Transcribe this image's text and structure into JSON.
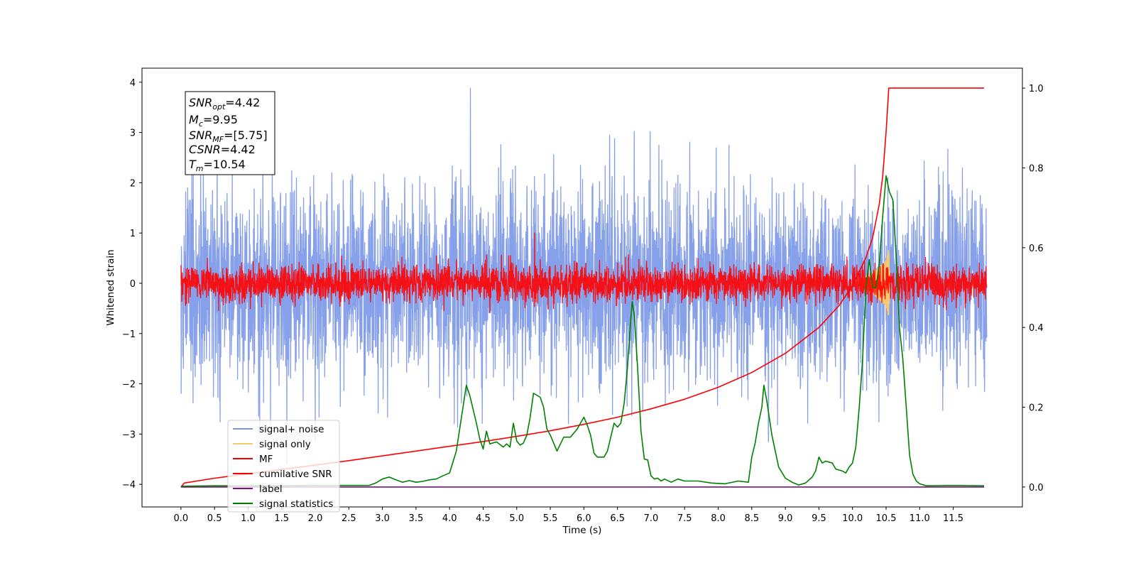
{
  "chart_data": {
    "type": "line",
    "xlabel": "Time (s)",
    "ylabel": "Whitened strain",
    "xlim": [
      -0.58,
      12.53
    ],
    "ylim": [
      -4.45,
      4.28
    ],
    "y2lim": [
      -0.05,
      1.05
    ],
    "x_ticks": [
      0.0,
      0.5,
      1.0,
      1.5,
      2.0,
      2.5,
      3.0,
      3.5,
      4.0,
      4.5,
      5.0,
      5.5,
      6.0,
      6.5,
      7.0,
      7.5,
      8.0,
      8.5,
      9.0,
      9.5,
      10.0,
      10.5,
      11.0,
      11.5
    ],
    "x_tick_labels": [
      "0.0",
      "0.5",
      "1.0",
      "1.5",
      "2.0",
      "2.5",
      "3.0",
      "3.5",
      "4.0",
      "4.5",
      "5.0",
      "5.5",
      "6.0",
      "6.5",
      "7.0",
      "7.5",
      "8.0",
      "8.5",
      "9.0",
      "9.5",
      "10.0",
      "10.5",
      "11.0",
      "11.5"
    ],
    "y_ticks": [
      -4,
      -3,
      -2,
      -1,
      0,
      1,
      2,
      3,
      4
    ],
    "y_tick_labels": [
      "−4",
      "−3",
      "−2",
      "−1",
      "0",
      "1",
      "2",
      "3",
      "4"
    ],
    "y2_ticks": [
      0.0,
      0.2,
      0.4,
      0.6,
      0.8,
      1.0
    ],
    "y2_tick_labels": [
      "0.0",
      "0.2",
      "0.4",
      "0.6",
      "0.8",
      "1.0"
    ],
    "grid": false,
    "legend_position": "lower-left",
    "annotation": {
      "lines": [
        {
          "var": "SNR",
          "sub": "opt",
          "value": "=4.42"
        },
        {
          "var": "M",
          "sub": "c",
          "value": "=9.95"
        },
        {
          "var": "SNR",
          "sub": "MF",
          "value": "=[5.75]"
        },
        {
          "var": "CSNR",
          "sub": "",
          "value": "=4.42"
        },
        {
          "var": "T",
          "sub": "m",
          "value": "=10.54"
        }
      ]
    },
    "series": [
      {
        "name": "signal+ noise",
        "color": "#7a96e8",
        "axis": "left",
        "kind": "noise",
        "x_range": [
          0.0,
          12.0
        ],
        "std": 1.0,
        "peak_min": -3.6,
        "peak_max": 3.88,
        "envelope": [
          [
            0.0,
            3.6
          ],
          [
            12.0,
            3.6
          ]
        ]
      },
      {
        "name": "signal only",
        "color": "#f5c970",
        "axis": "left",
        "kind": "chirp",
        "x_range": [
          10.0,
          10.56
        ],
        "envelope": [
          [
            10.0,
            0.05
          ],
          [
            10.3,
            0.2
          ],
          [
            10.5,
            0.45
          ],
          [
            10.54,
            0.7
          ],
          [
            10.56,
            0.0
          ]
        ]
      },
      {
        "name": "MF",
        "color": "#ff0000",
        "axis": "left",
        "kind": "noise",
        "x_range": [
          0.0,
          12.0
        ],
        "std": 0.18,
        "peak_min": -0.27,
        "peak_max": 1.0,
        "envelope": [
          [
            0.0,
            0.6
          ],
          [
            12.0,
            0.6
          ]
        ]
      },
      {
        "name": "cumilative SNR",
        "color": "#ff0000",
        "axis": "right",
        "kind": "line",
        "points": [
          [
            0.0,
            0.0
          ],
          [
            0.05,
            0.01
          ],
          [
            0.5,
            0.022
          ],
          [
            1.0,
            0.033
          ],
          [
            1.5,
            0.044
          ],
          [
            2.0,
            0.055
          ],
          [
            2.5,
            0.066
          ],
          [
            3.0,
            0.078
          ],
          [
            3.5,
            0.09
          ],
          [
            4.0,
            0.102
          ],
          [
            4.5,
            0.114
          ],
          [
            5.0,
            0.127
          ],
          [
            5.5,
            0.141
          ],
          [
            6.0,
            0.157
          ],
          [
            6.5,
            0.175
          ],
          [
            7.0,
            0.196
          ],
          [
            7.5,
            0.22
          ],
          [
            8.0,
            0.25
          ],
          [
            8.5,
            0.287
          ],
          [
            9.0,
            0.335
          ],
          [
            9.5,
            0.4
          ],
          [
            9.8,
            0.455
          ],
          [
            10.0,
            0.505
          ],
          [
            10.2,
            0.575
          ],
          [
            10.3,
            0.625
          ],
          [
            10.4,
            0.71
          ],
          [
            10.45,
            0.78
          ],
          [
            10.5,
            0.89
          ],
          [
            10.54,
            1.0
          ],
          [
            11.96,
            1.0
          ]
        ]
      },
      {
        "name": "label",
        "color": "#7b0f80",
        "axis": "right",
        "kind": "line",
        "points": [
          [
            0.0,
            0.0
          ],
          [
            11.96,
            0.0
          ]
        ]
      },
      {
        "name": "signal statistics",
        "color": "#008000",
        "axis": "right",
        "kind": "line",
        "points": [
          [
            0.0,
            0.002
          ],
          [
            0.5,
            0.003
          ],
          [
            1.0,
            0.003
          ],
          [
            1.5,
            0.003
          ],
          [
            2.0,
            0.004
          ],
          [
            2.5,
            0.004
          ],
          [
            2.8,
            0.004
          ],
          [
            2.9,
            0.01
          ],
          [
            3.0,
            0.02
          ],
          [
            3.1,
            0.025
          ],
          [
            3.2,
            0.018
          ],
          [
            3.3,
            0.012
          ],
          [
            3.4,
            0.016
          ],
          [
            3.5,
            0.012
          ],
          [
            3.6,
            0.014
          ],
          [
            3.7,
            0.018
          ],
          [
            3.8,
            0.02
          ],
          [
            3.9,
            0.028
          ],
          [
            4.0,
            0.035
          ],
          [
            4.1,
            0.09
          ],
          [
            4.2,
            0.2
          ],
          [
            4.25,
            0.255
          ],
          [
            4.3,
            0.23
          ],
          [
            4.4,
            0.16
          ],
          [
            4.45,
            0.12
          ],
          [
            4.5,
            0.095
          ],
          [
            4.55,
            0.14
          ],
          [
            4.6,
            0.108
          ],
          [
            4.7,
            0.113
          ],
          [
            4.8,
            0.1
          ],
          [
            4.85,
            0.108
          ],
          [
            4.9,
            0.1
          ],
          [
            4.95,
            0.16
          ],
          [
            5.0,
            0.115
          ],
          [
            5.05,
            0.105
          ],
          [
            5.1,
            0.11
          ],
          [
            5.15,
            0.13
          ],
          [
            5.2,
            0.175
          ],
          [
            5.25,
            0.235
          ],
          [
            5.3,
            0.23
          ],
          [
            5.35,
            0.225
          ],
          [
            5.4,
            0.2
          ],
          [
            5.45,
            0.145
          ],
          [
            5.5,
            0.13
          ],
          [
            5.55,
            0.11
          ],
          [
            5.6,
            0.09
          ],
          [
            5.7,
            0.125
          ],
          [
            5.8,
            0.125
          ],
          [
            5.9,
            0.145
          ],
          [
            5.95,
            0.16
          ],
          [
            6.0,
            0.175
          ],
          [
            6.05,
            0.155
          ],
          [
            6.1,
            0.13
          ],
          [
            6.15,
            0.085
          ],
          [
            6.2,
            0.075
          ],
          [
            6.3,
            0.075
          ],
          [
            6.35,
            0.09
          ],
          [
            6.4,
            0.125
          ],
          [
            6.45,
            0.16
          ],
          [
            6.5,
            0.15
          ],
          [
            6.55,
            0.16
          ],
          [
            6.6,
            0.21
          ],
          [
            6.65,
            0.3
          ],
          [
            6.7,
            0.425
          ],
          [
            6.72,
            0.465
          ],
          [
            6.75,
            0.43
          ],
          [
            6.8,
            0.3
          ],
          [
            6.85,
            0.14
          ],
          [
            6.9,
            0.07
          ],
          [
            6.95,
            0.068
          ],
          [
            7.0,
            0.028
          ],
          [
            7.05,
            0.02
          ],
          [
            7.1,
            0.022
          ],
          [
            7.15,
            0.015
          ],
          [
            7.2,
            0.02
          ],
          [
            7.3,
            0.012
          ],
          [
            7.4,
            0.02
          ],
          [
            7.5,
            0.015
          ],
          [
            7.7,
            0.015
          ],
          [
            7.9,
            0.01
          ],
          [
            8.1,
            0.008
          ],
          [
            8.3,
            0.015
          ],
          [
            8.45,
            0.012
          ],
          [
            8.5,
            0.075
          ],
          [
            8.55,
            0.11
          ],
          [
            8.6,
            0.16
          ],
          [
            8.65,
            0.2
          ],
          [
            8.68,
            0.255
          ],
          [
            8.72,
            0.22
          ],
          [
            8.8,
            0.13
          ],
          [
            8.9,
            0.05
          ],
          [
            9.0,
            0.022
          ],
          [
            9.1,
            0.012
          ],
          [
            9.2,
            0.005
          ],
          [
            9.3,
            0.01
          ],
          [
            9.4,
            0.025
          ],
          [
            9.45,
            0.04
          ],
          [
            9.5,
            0.075
          ],
          [
            9.55,
            0.06
          ],
          [
            9.6,
            0.065
          ],
          [
            9.7,
            0.06
          ],
          [
            9.75,
            0.045
          ],
          [
            9.85,
            0.04
          ],
          [
            9.9,
            0.035
          ],
          [
            9.95,
            0.05
          ],
          [
            10.0,
            0.06
          ],
          [
            10.05,
            0.1
          ],
          [
            10.1,
            0.2
          ],
          [
            10.15,
            0.32
          ],
          [
            10.2,
            0.5
          ],
          [
            10.25,
            0.57
          ],
          [
            10.3,
            0.5
          ],
          [
            10.35,
            0.5
          ],
          [
            10.4,
            0.56
          ],
          [
            10.45,
            0.68
          ],
          [
            10.5,
            0.78
          ],
          [
            10.55,
            0.74
          ],
          [
            10.6,
            0.72
          ],
          [
            10.65,
            0.58
          ],
          [
            10.7,
            0.4
          ],
          [
            10.75,
            0.32
          ],
          [
            10.8,
            0.2
          ],
          [
            10.85,
            0.08
          ],
          [
            10.9,
            0.032
          ],
          [
            10.95,
            0.015
          ],
          [
            11.0,
            0.008
          ],
          [
            11.1,
            0.003
          ],
          [
            11.5,
            0.004
          ],
          [
            11.96,
            0.003
          ]
        ]
      }
    ]
  }
}
